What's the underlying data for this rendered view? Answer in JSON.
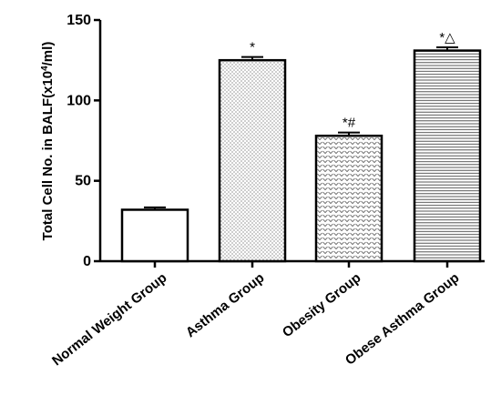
{
  "chart_data": {
    "type": "bar",
    "categories": [
      "Normal Weight Group",
      "Asthma Group",
      "Obesity Group",
      "Obese Asthma Group"
    ],
    "values": [
      32,
      125,
      78,
      131
    ],
    "errors": [
      1.5,
      2,
      2,
      2
    ],
    "annotations": [
      "",
      "*",
      "*#",
      "*△"
    ],
    "patterns": [
      "none",
      "dots",
      "chevrons",
      "horizontal-lines"
    ],
    "ylabel_main": "Total Cell No. in BALF(x10",
    "ylabel_exp": "4",
    "ylabel_end": "/ml)",
    "xlabel": "",
    "ylim": [
      0,
      150
    ],
    "yticks": [
      0,
      50,
      100,
      150
    ],
    "grid": false,
    "bar_fill": "#ffffff",
    "bar_stroke": "#000000"
  }
}
